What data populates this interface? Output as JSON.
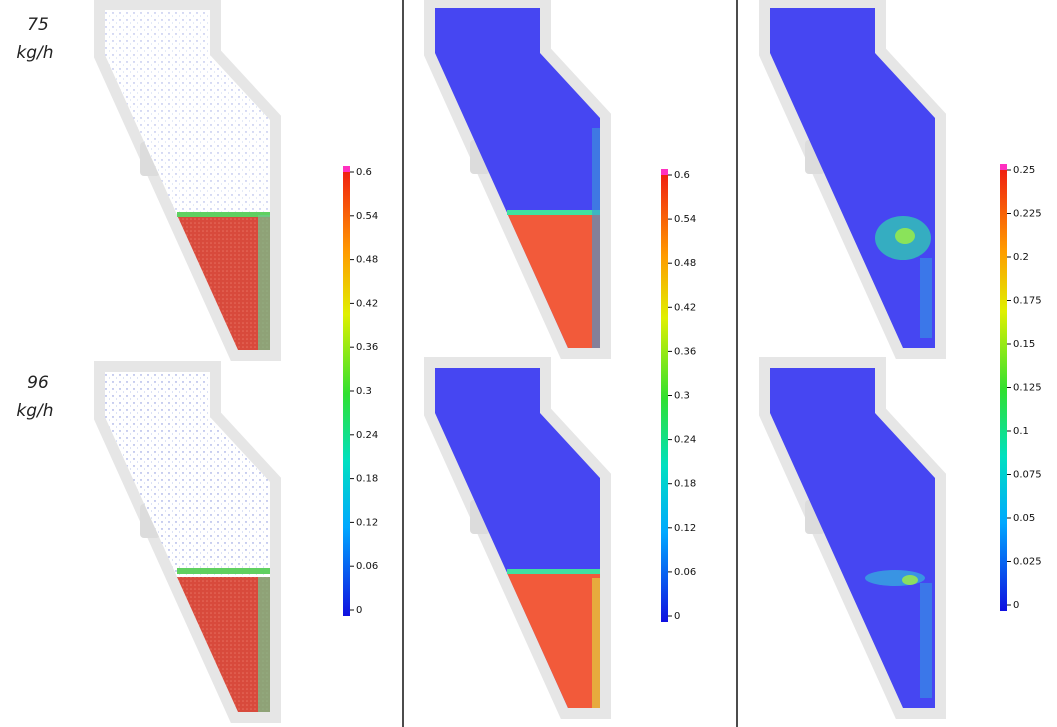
{
  "rows": [
    {
      "rate": "75",
      "unit": "kg/h"
    },
    {
      "rate": "96",
      "unit": "kg/h"
    }
  ],
  "colorbars": [
    {
      "range": [
        0,
        0.6
      ],
      "ticks": [
        0,
        0.06,
        0.12,
        0.18,
        0.24,
        0.3,
        0.36,
        0.42,
        0.48,
        0.54,
        0.6
      ]
    },
    {
      "range": [
        0,
        0.6
      ],
      "ticks": [
        0,
        0.06,
        0.12,
        0.18,
        0.24,
        0.3,
        0.36,
        0.42,
        0.48,
        0.54,
        0.6
      ]
    },
    {
      "range": [
        0,
        0.25
      ],
      "ticks": [
        0,
        0.025,
        0.05,
        0.075,
        0.1,
        0.125,
        0.15,
        0.175,
        0.2,
        0.225,
        0.25
      ]
    }
  ]
}
